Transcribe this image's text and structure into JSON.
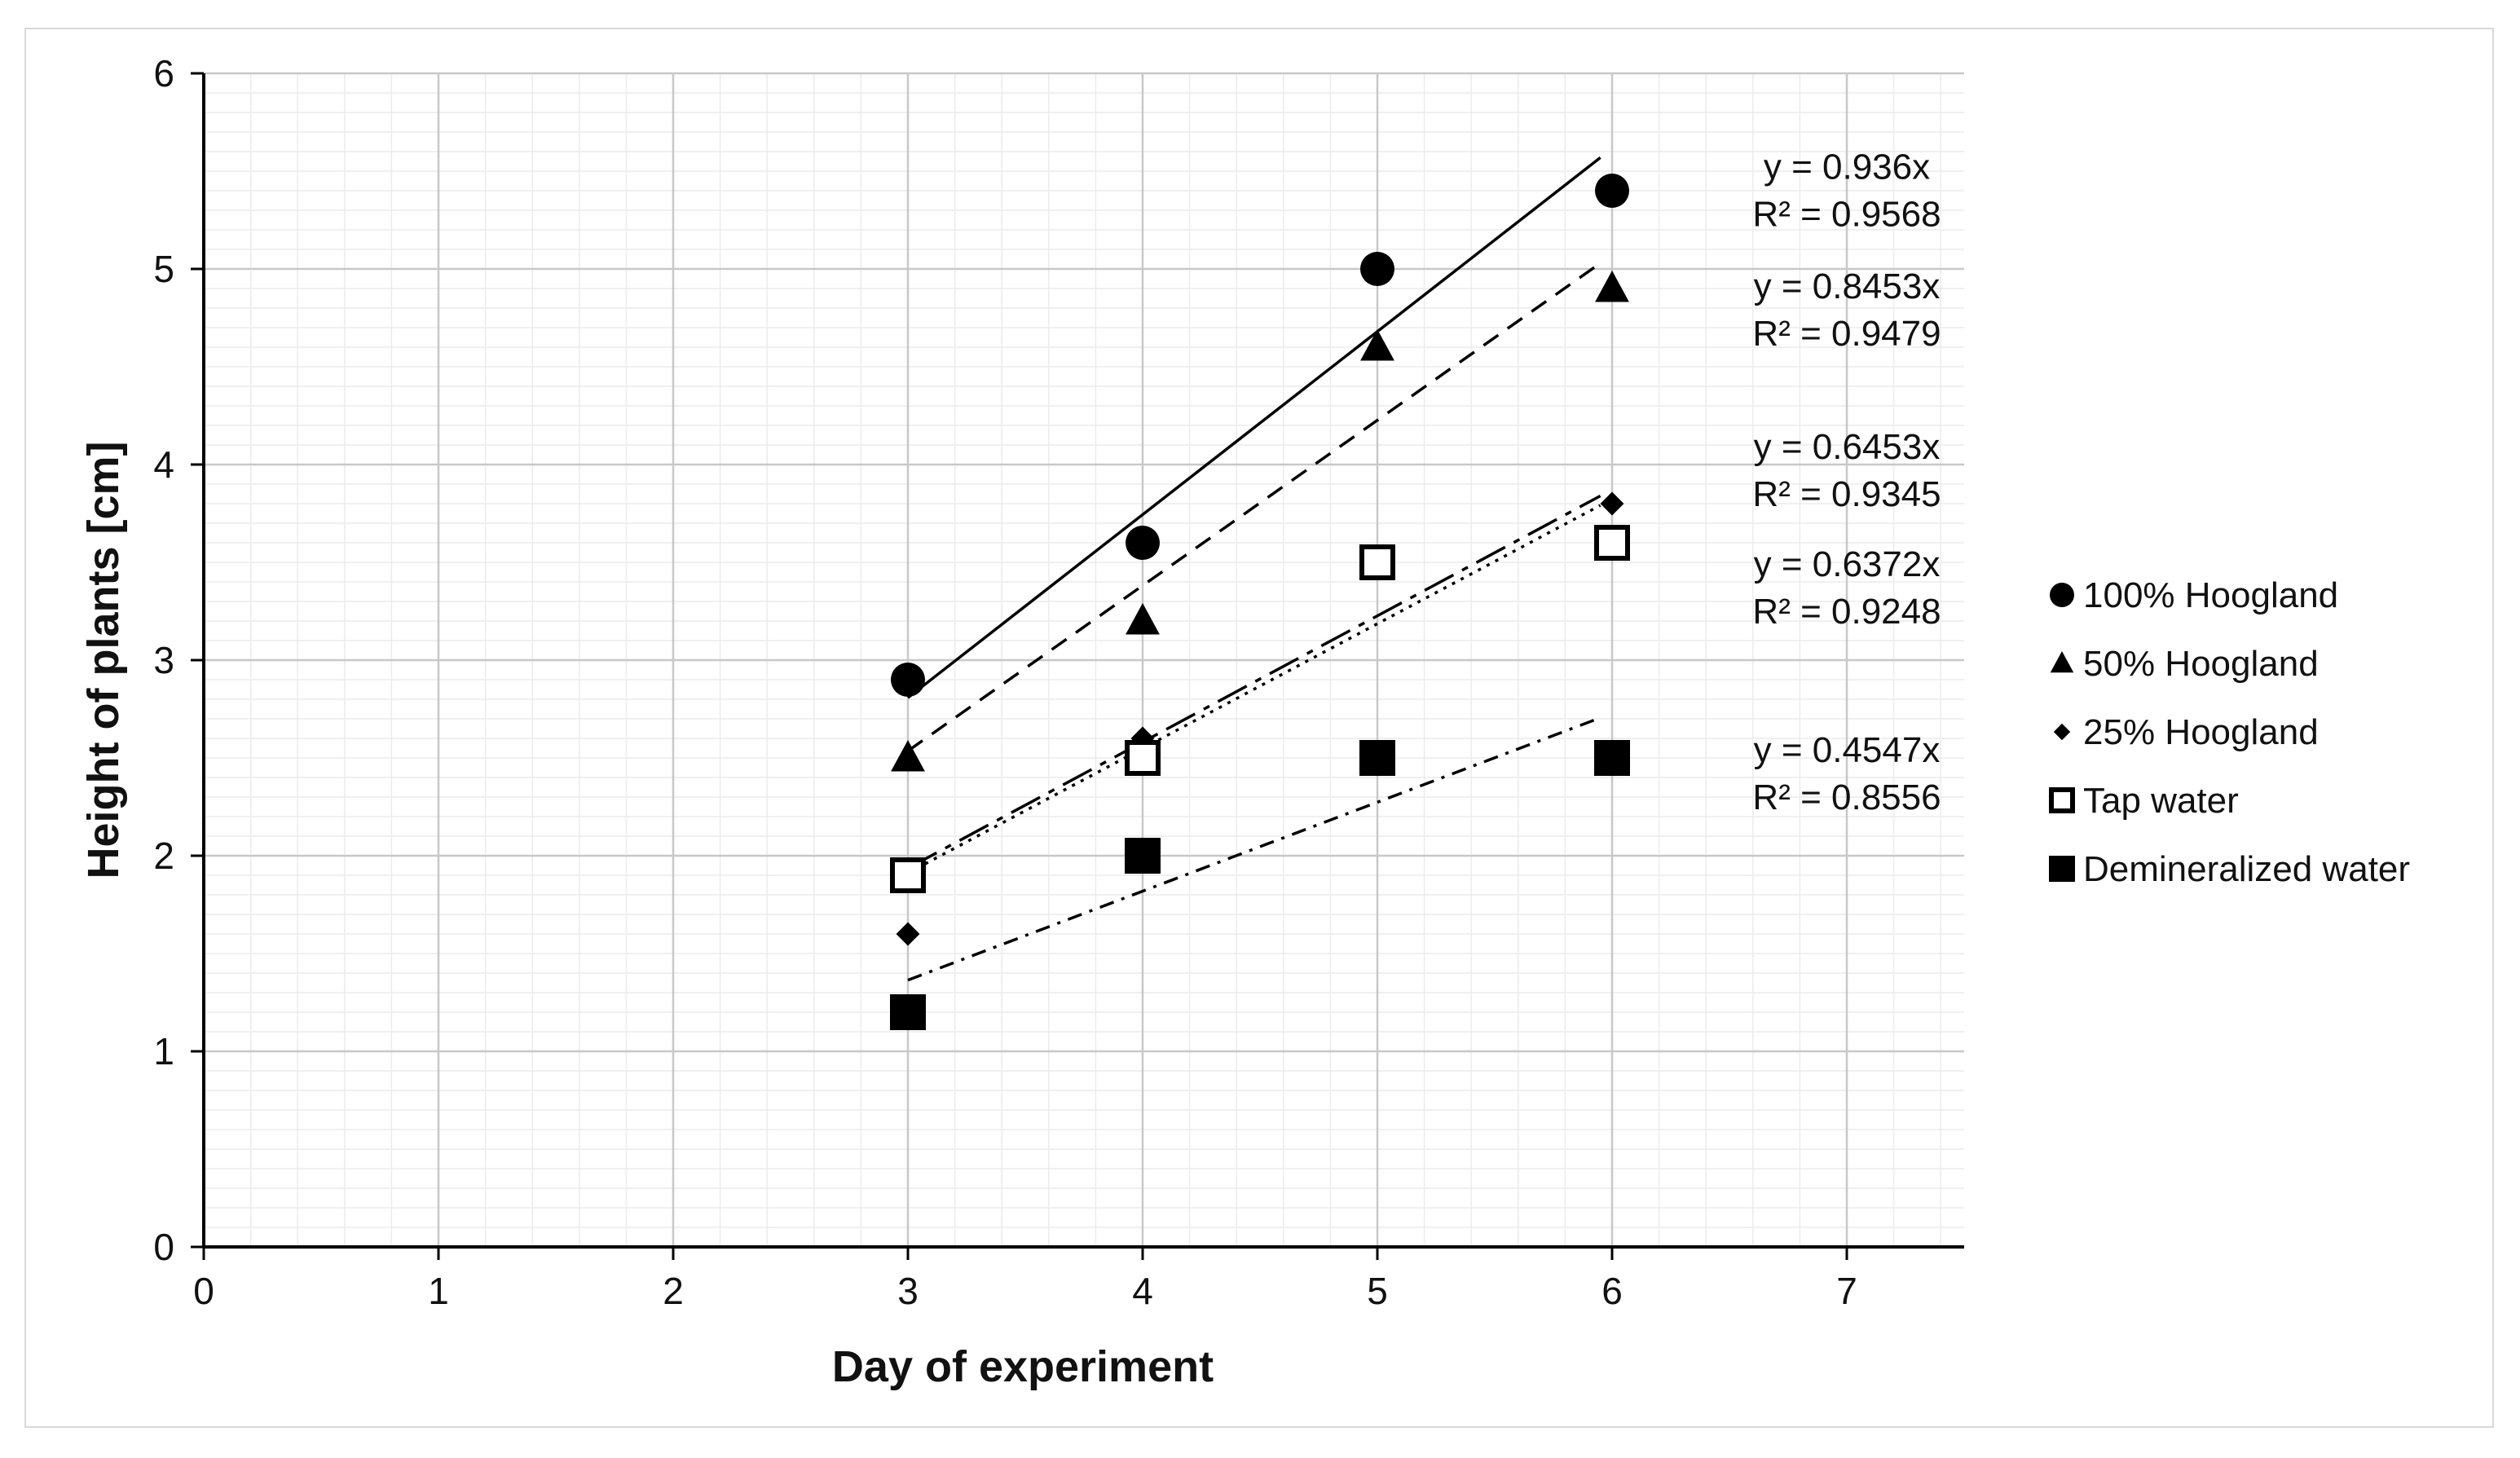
{
  "chart_data": {
    "type": "scatter",
    "title": "",
    "xlabel": "Day of experiment",
    "ylabel": "Height of plants [cm]",
    "xlim": [
      0,
      7.5
    ],
    "ylim": [
      0,
      6
    ],
    "xticks": [
      "0",
      "1",
      "2",
      "3",
      "4",
      "5",
      "6",
      "7"
    ],
    "yticks": [
      "0",
      "1",
      "2",
      "3",
      "4",
      "5",
      "6"
    ],
    "grid": true,
    "legend_position": "right",
    "trendline_x_range": [
      3,
      6
    ],
    "series": [
      {
        "name": "100% Hoogland",
        "marker": "circle",
        "x": [
          3,
          4,
          5,
          6
        ],
        "y": [
          2.9,
          3.6,
          5.0,
          5.4
        ],
        "trendline": {
          "slope": 0.936,
          "dash": "solid"
        },
        "equation": "y = 0.936x",
        "r2": "R² = 0.9568",
        "label_pos": [
          7.0,
          5.46
        ]
      },
      {
        "name": "50% Hoogland",
        "marker": "triangle",
        "x": [
          3,
          4,
          5,
          6
        ],
        "y": [
          2.5,
          3.2,
          4.6,
          4.9
        ],
        "trendline": {
          "slope": 0.8453,
          "dash": "dashed"
        },
        "equation": "y = 0.8453x",
        "r2": "R² = 0.9479",
        "label_pos": [
          7.0,
          4.85
        ]
      },
      {
        "name": "25% Hoogland",
        "marker": "diamond",
        "x": [
          3,
          4,
          5,
          6
        ],
        "y": [
          1.6,
          2.6,
          3.5,
          3.8
        ],
        "trendline": {
          "slope": 0.6453,
          "dash": "longdash"
        },
        "equation": "y = 0.6453x",
        "r2": "R² = 0.9345",
        "label_pos": [
          7.0,
          4.03
        ]
      },
      {
        "name": "Tap water",
        "marker": "open-square",
        "x": [
          3,
          4,
          5,
          6
        ],
        "y": [
          1.9,
          2.5,
          3.5,
          3.6
        ],
        "trendline": {
          "slope": 0.6372,
          "dash": "dotted"
        },
        "equation": "y = 0.6372x",
        "r2": "R² = 0.9248",
        "label_pos": [
          7.0,
          3.43
        ]
      },
      {
        "name": "Demineralized water",
        "marker": "filled-square",
        "x": [
          3,
          4,
          5,
          6
        ],
        "y": [
          1.2,
          2.0,
          2.5,
          2.5
        ],
        "trendline": {
          "slope": 0.4547,
          "dash": "dashdot"
        },
        "equation": "y = 0.4547x",
        "r2": "R² = 0.8556",
        "label_pos": [
          7.0,
          2.48
        ]
      }
    ]
  }
}
